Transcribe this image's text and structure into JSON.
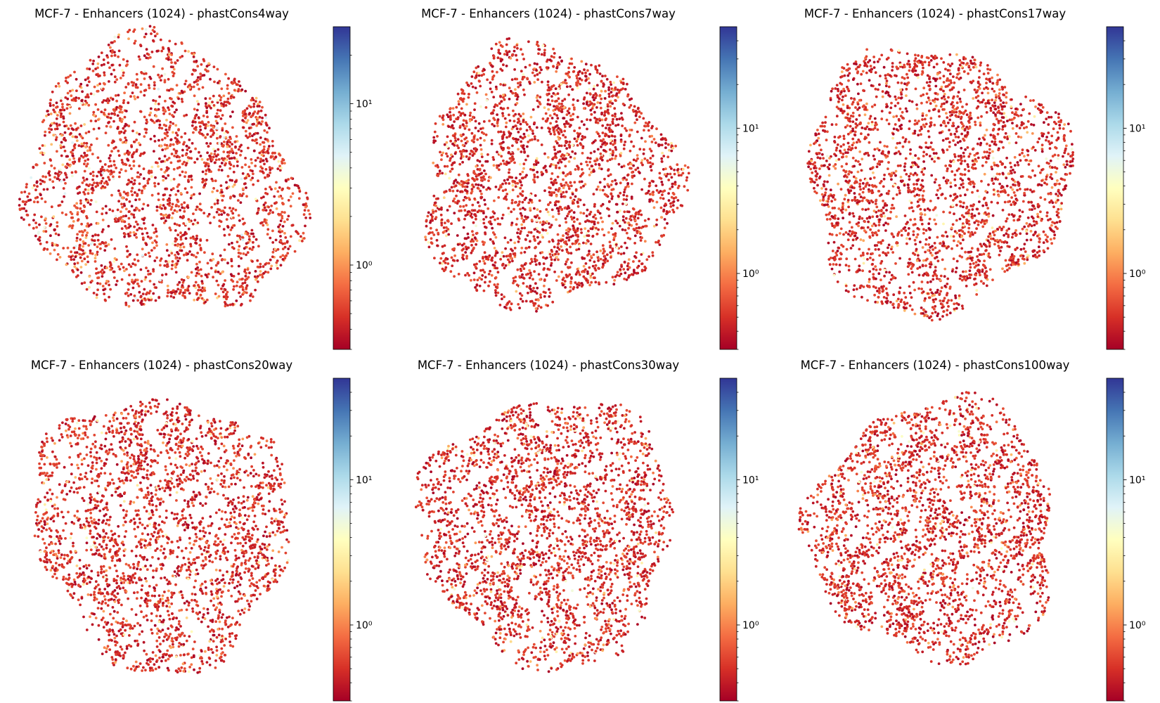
{
  "figure": {
    "colormap": [
      "#a50026",
      "#d73027",
      "#f46d43",
      "#fdae61",
      "#fee090",
      "#ffffbf",
      "#e0f3f8",
      "#abd9e9",
      "#74add1",
      "#4575b4",
      "#313695"
    ]
  },
  "chart_data": [
    {
      "type": "scatter",
      "title": "MCF-7 - Enhancers (1024) - phastCons4way",
      "xlabel": "",
      "ylabel": "",
      "axes_visible": false,
      "colorbar": {
        "scale": "log",
        "range": [
          0.3,
          30
        ],
        "ticks": [
          1,
          10
        ],
        "tick_labels": [
          "10⁰",
          "10¹"
        ]
      },
      "points_summary": "about 3000 points, most with values near 0.3-1 (dark red), a few up to ~5"
    },
    {
      "type": "scatter",
      "title": "MCF-7 - Enhancers (1024) - phastCons7way",
      "xlabel": "",
      "ylabel": "",
      "axes_visible": false,
      "colorbar": {
        "scale": "log",
        "range": [
          0.3,
          50
        ],
        "ticks": [
          1,
          10
        ],
        "tick_labels": [
          "10⁰",
          "10¹"
        ]
      },
      "points_summary": "about 3000 points, most with values near 0.3-1 (dark red), a few up to ~5"
    },
    {
      "type": "scatter",
      "title": "MCF-7 - Enhancers (1024) - phastCons17way",
      "xlabel": "",
      "ylabel": "",
      "axes_visible": false,
      "colorbar": {
        "scale": "log",
        "range": [
          0.3,
          50
        ],
        "ticks": [
          1,
          10
        ],
        "tick_labels": [
          "10⁰",
          "10¹"
        ]
      },
      "points_summary": "about 3000 points, most with values near 0.3-1 (dark red), a few up to ~5"
    },
    {
      "type": "scatter",
      "title": "MCF-7 - Enhancers (1024) - phastCons20way",
      "xlabel": "",
      "ylabel": "",
      "axes_visible": false,
      "colorbar": {
        "scale": "log",
        "range": [
          0.3,
          50
        ],
        "ticks": [
          1,
          10
        ],
        "tick_labels": [
          "10⁰",
          "10¹"
        ]
      },
      "points_summary": "about 3000 points, most with values near 0.3-1 (dark red), a few up to ~5"
    },
    {
      "type": "scatter",
      "title": "MCF-7 - Enhancers (1024) - phastCons30way",
      "xlabel": "",
      "ylabel": "",
      "axes_visible": false,
      "colorbar": {
        "scale": "log",
        "range": [
          0.3,
          50
        ],
        "ticks": [
          1,
          10
        ],
        "tick_labels": [
          "10⁰",
          "10¹"
        ]
      },
      "points_summary": "about 3000 points, most with values near 0.3-1 (dark red), a few up to ~5"
    },
    {
      "type": "scatter",
      "title": "MCF-7 - Enhancers (1024) - phastCons100way",
      "xlabel": "",
      "ylabel": "",
      "axes_visible": false,
      "colorbar": {
        "scale": "log",
        "range": [
          0.3,
          50
        ],
        "ticks": [
          1,
          10
        ],
        "tick_labels": [
          "10⁰",
          "10¹"
        ]
      },
      "points_summary": "about 3000 points, most with values near 0.3-1 (dark red), a few up to ~5"
    }
  ]
}
